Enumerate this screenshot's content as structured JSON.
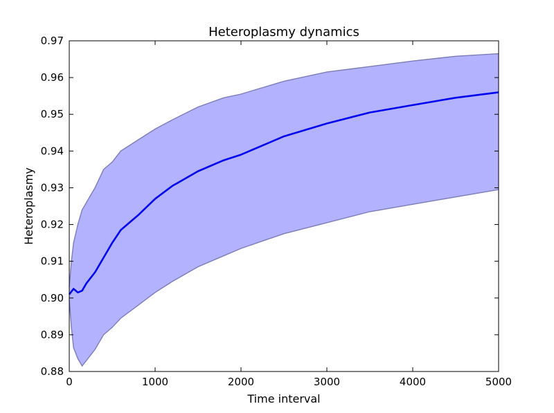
{
  "chart_data": {
    "type": "line",
    "title": "Heteroplasmy dynamics",
    "xlabel": "Time interval",
    "ylabel": "Heteroplasmy",
    "xlim": [
      0,
      5000
    ],
    "ylim": [
      0.88,
      0.97
    ],
    "xticks": [
      "0",
      "1000",
      "2000",
      "3000",
      "4000",
      "5000"
    ],
    "yticks": [
      "0.88",
      "0.89",
      "0.90",
      "0.91",
      "0.92",
      "0.93",
      "0.94",
      "0.95",
      "0.96",
      "0.97"
    ],
    "grid": false,
    "colors": {
      "mean_line": "#0000ee",
      "band_fill": "#b2b2ff",
      "band_edge": "#7b7bb5"
    },
    "series": [
      {
        "role": "mean",
        "x": [
          0,
          50,
          100,
          150,
          200,
          300,
          400,
          500,
          600,
          800,
          1000,
          1200,
          1500,
          1800,
          2000,
          2500,
          3000,
          3500,
          4000,
          4500,
          5000
        ],
        "y": [
          0.901,
          0.9025,
          0.9015,
          0.902,
          0.904,
          0.907,
          0.911,
          0.915,
          0.9185,
          0.9225,
          0.927,
          0.9305,
          0.9345,
          0.9375,
          0.939,
          0.944,
          0.9475,
          0.9505,
          0.9525,
          0.9545,
          0.956
        ]
      },
      {
        "role": "upper",
        "x": [
          0,
          25,
          50,
          100,
          150,
          200,
          300,
          400,
          500,
          600,
          800,
          1000,
          1200,
          1500,
          1800,
          2000,
          2500,
          3000,
          3500,
          4000,
          4500,
          5000
        ],
        "y": [
          0.903,
          0.91,
          0.915,
          0.92,
          0.924,
          0.926,
          0.93,
          0.935,
          0.937,
          0.94,
          0.943,
          0.946,
          0.9485,
          0.952,
          0.9545,
          0.9555,
          0.959,
          0.9615,
          0.963,
          0.9645,
          0.9658,
          0.9665
        ]
      },
      {
        "role": "lower",
        "x": [
          0,
          25,
          50,
          100,
          150,
          200,
          300,
          400,
          500,
          600,
          800,
          1000,
          1200,
          1500,
          1800,
          2000,
          2500,
          3000,
          3500,
          4000,
          4500,
          5000
        ],
        "y": [
          0.8995,
          0.892,
          0.8865,
          0.8835,
          0.8815,
          0.883,
          0.886,
          0.89,
          0.892,
          0.8945,
          0.898,
          0.9015,
          0.9045,
          0.9085,
          0.9115,
          0.9135,
          0.9175,
          0.9205,
          0.9235,
          0.9255,
          0.9275,
          0.9295
        ]
      }
    ]
  }
}
